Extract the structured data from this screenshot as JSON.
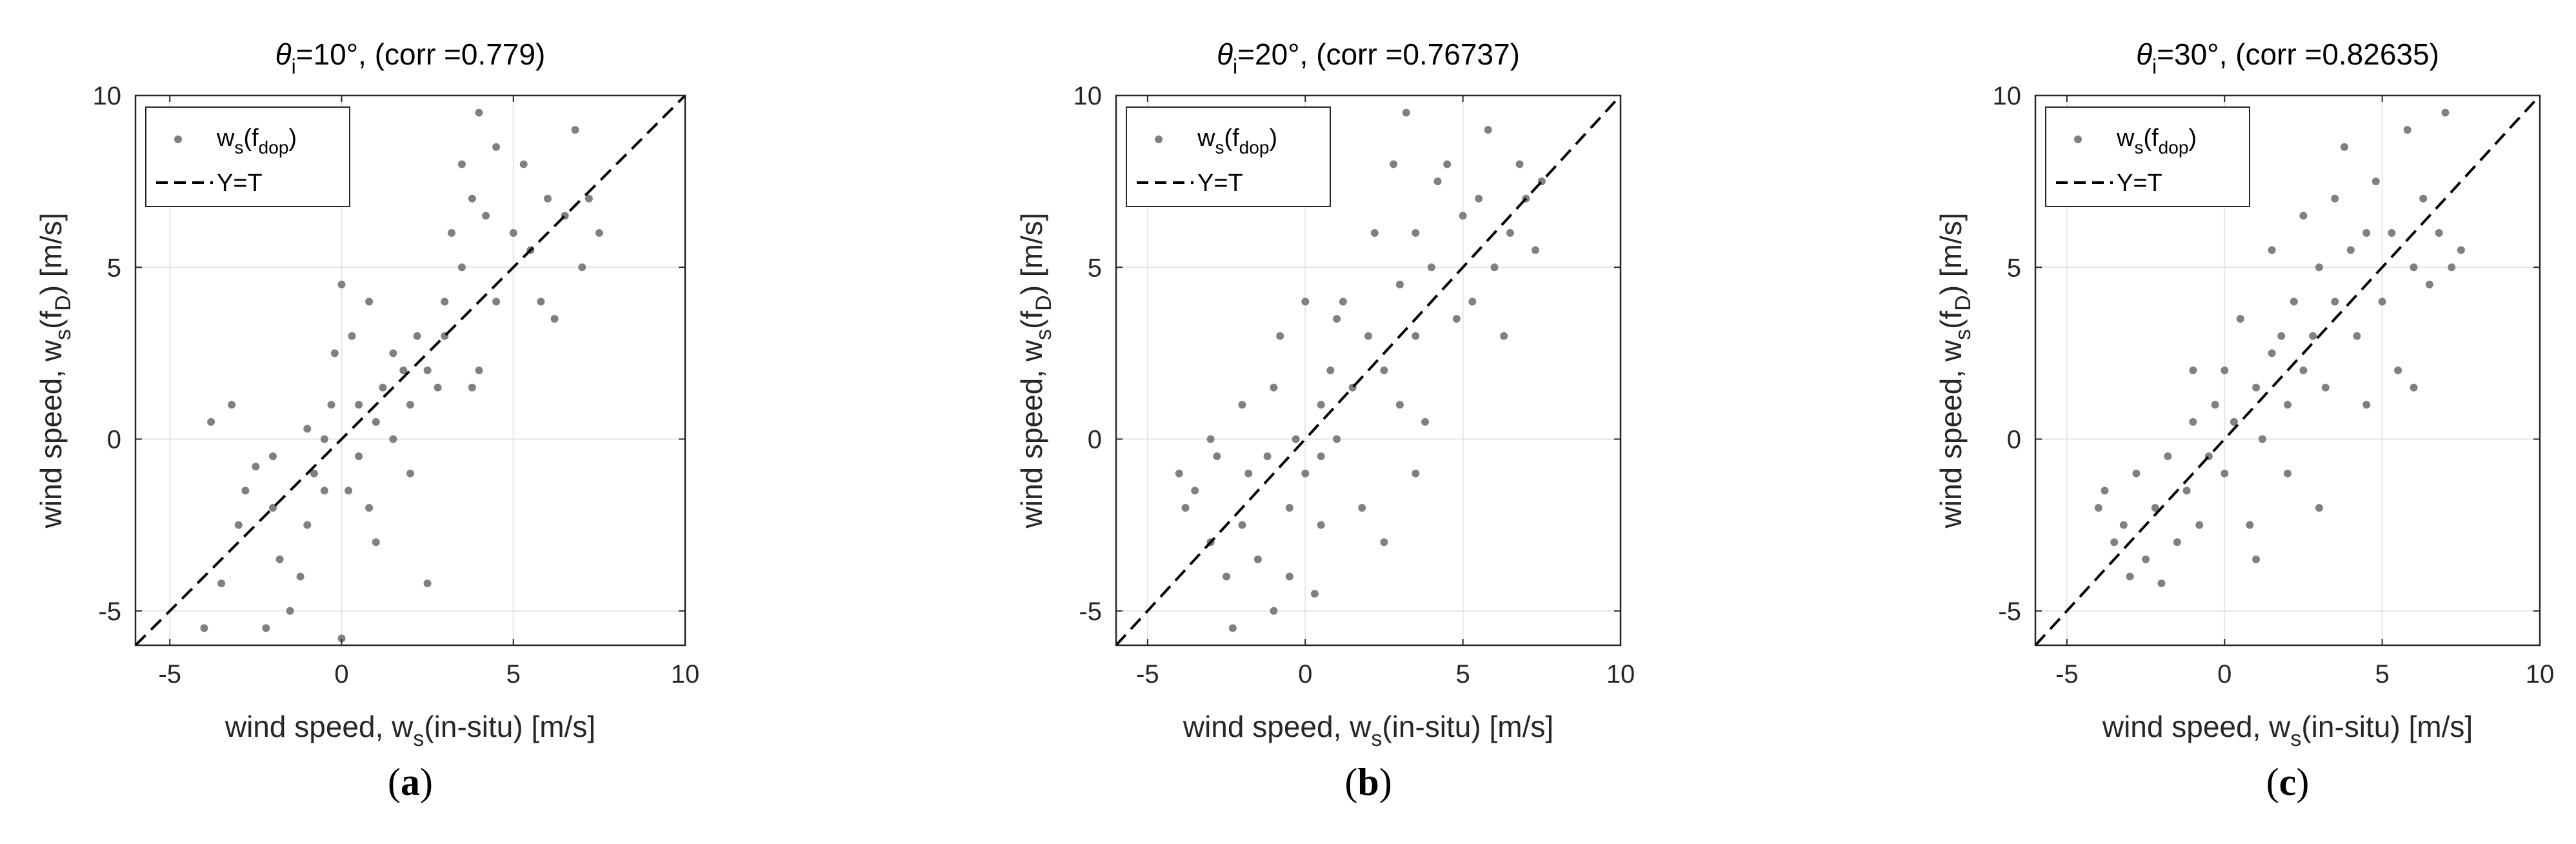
{
  "chart_data": [
    {
      "type": "scatter",
      "title": {
        "sym": "θ",
        "sub": "i",
        "rest": "=10°, (corr =0.779)"
      },
      "corr": 0.779,
      "xlabel": {
        "pre": "wind speed, w",
        "sub": "s",
        "post": "(in-situ) [m/s]"
      },
      "ylabel": {
        "pre": "wind speed, w",
        "sub": "s",
        "mid": "(f",
        "sub2": "D",
        "post": ") [m/s]"
      },
      "xlim": [
        -6,
        10
      ],
      "ylim": [
        -6,
        10
      ],
      "xticks": [
        "-5",
        "0",
        "5",
        "10"
      ],
      "yticks": [
        "-5",
        "0",
        "5",
        "10"
      ],
      "grid": true,
      "legend_position": "top-left",
      "series": [
        {
          "name": {
            "pre": "w",
            "sub": "s",
            "mid": "(f",
            "sub2": "dop",
            "post": ")"
          },
          "marker": "dot",
          "color": "#808080",
          "points": [
            [
              -4,
              -5.5
            ],
            [
              -3.5,
              -4.2
            ],
            [
              -3,
              -2.5
            ],
            [
              -2.8,
              -1.5
            ],
            [
              -2.5,
              -0.8
            ],
            [
              -2,
              -0.5
            ],
            [
              -2,
              -2
            ],
            [
              -1.8,
              -3.5
            ],
            [
              -1.5,
              -5
            ],
            [
              -1.2,
              -4
            ],
            [
              -1,
              -2.5
            ],
            [
              -0.8,
              -1
            ],
            [
              -0.5,
              0
            ],
            [
              -0.3,
              1
            ],
            [
              -0.2,
              2.5
            ],
            [
              0,
              4.5
            ],
            [
              0.3,
              3
            ],
            [
              0.5,
              1
            ],
            [
              0.5,
              -0.5
            ],
            [
              0.8,
              -2
            ],
            [
              1,
              0.5
            ],
            [
              1.2,
              1.5
            ],
            [
              1.5,
              0
            ],
            [
              1.8,
              2
            ],
            [
              2,
              1
            ],
            [
              2.2,
              3
            ],
            [
              2.5,
              2
            ],
            [
              2.8,
              1.5
            ],
            [
              3,
              4
            ],
            [
              3.2,
              6
            ],
            [
              3.5,
              5
            ],
            [
              3.5,
              8
            ],
            [
              3.8,
              7
            ],
            [
              4,
              9.5
            ],
            [
              4.2,
              6.5
            ],
            [
              4.5,
              4
            ],
            [
              4.5,
              8.5
            ],
            [
              5,
              6
            ],
            [
              5.3,
              8
            ],
            [
              5.5,
              5.5
            ],
            [
              5.8,
              4
            ],
            [
              6,
              7
            ],
            [
              6.2,
              3.5
            ],
            [
              6.5,
              6.5
            ],
            [
              6.8,
              9
            ],
            [
              7,
              5
            ],
            [
              7.2,
              7
            ],
            [
              7.5,
              6
            ],
            [
              -3.8,
              0.5
            ],
            [
              -3.2,
              1
            ],
            [
              -1,
              0.3
            ],
            [
              0.2,
              -1.5
            ],
            [
              1,
              -3
            ],
            [
              2.5,
              -4.2
            ],
            [
              0,
              -5.8
            ],
            [
              -2.2,
              -5.5
            ],
            [
              -0.5,
              -1.5
            ],
            [
              1.5,
              2.5
            ],
            [
              3,
              3
            ],
            [
              2,
              -1
            ],
            [
              4,
              2
            ],
            [
              0.8,
              4
            ],
            [
              3.8,
              1.5
            ]
          ]
        },
        {
          "name": "Y=T",
          "style": "dashed",
          "color": "#000000",
          "x": [
            -6,
            10
          ],
          "y": [
            -6,
            10
          ]
        }
      ],
      "panel_label": "(a)"
    },
    {
      "type": "scatter",
      "title": {
        "sym": "θ",
        "sub": "i",
        "rest": "=20°, (corr =0.76737)"
      },
      "corr": 0.76737,
      "xlabel": {
        "pre": "wind speed, w",
        "sub": "s",
        "post": "(in-situ) [m/s]"
      },
      "ylabel": {
        "pre": "wind speed, w",
        "sub": "s",
        "mid": "(f",
        "sub2": "D",
        "post": ") [m/s]"
      },
      "xlim": [
        -6,
        10
      ],
      "ylim": [
        -6,
        10
      ],
      "xticks": [
        "-5",
        "0",
        "5",
        "10"
      ],
      "yticks": [
        "-5",
        "0",
        "5",
        "10"
      ],
      "grid": true,
      "legend_position": "top-left",
      "series": [
        {
          "name": {
            "pre": "w",
            "sub": "s",
            "mid": "(f",
            "sub2": "dop",
            "post": ")"
          },
          "marker": "dot",
          "color": "#808080",
          "points": [
            [
              -4,
              -1
            ],
            [
              -3.8,
              -2
            ],
            [
              -3.5,
              -1.5
            ],
            [
              -3,
              -3
            ],
            [
              -2.8,
              -0.5
            ],
            [
              -2.5,
              -4
            ],
            [
              -2.3,
              -5.5
            ],
            [
              -2,
              -2.5
            ],
            [
              -1.8,
              -1
            ],
            [
              -1.5,
              -3.5
            ],
            [
              -1.2,
              -0.5
            ],
            [
              -1,
              1.5
            ],
            [
              -1,
              -5
            ],
            [
              -0.8,
              3
            ],
            [
              -0.5,
              -2
            ],
            [
              -0.3,
              0
            ],
            [
              0,
              -1
            ],
            [
              0,
              4
            ],
            [
              0.3,
              -4.5
            ],
            [
              0.5,
              1
            ],
            [
              0.5,
              -0.5
            ],
            [
              0.8,
              2
            ],
            [
              1,
              0
            ],
            [
              1.2,
              4
            ],
            [
              1.5,
              1.5
            ],
            [
              1.8,
              -2
            ],
            [
              2,
              3
            ],
            [
              2.2,
              6
            ],
            [
              2.5,
              2
            ],
            [
              2.5,
              -3
            ],
            [
              2.8,
              8
            ],
            [
              3,
              1
            ],
            [
              3,
              4.5
            ],
            [
              3.2,
              9.5
            ],
            [
              3.5,
              3
            ],
            [
              3.5,
              6
            ],
            [
              3.8,
              0.5
            ],
            [
              4,
              5
            ],
            [
              4.2,
              7.5
            ],
            [
              4.5,
              8
            ],
            [
              4.8,
              3.5
            ],
            [
              5,
              6.5
            ],
            [
              5.3,
              4
            ],
            [
              5.5,
              7
            ],
            [
              5.8,
              9
            ],
            [
              6,
              5
            ],
            [
              6.3,
              3
            ],
            [
              6.5,
              6
            ],
            [
              6.8,
              8
            ],
            [
              7,
              7
            ],
            [
              7.3,
              5.5
            ],
            [
              7.5,
              7.5
            ],
            [
              -3,
              0
            ],
            [
              -2,
              1
            ],
            [
              1,
              3.5
            ],
            [
              3.5,
              -1
            ],
            [
              0.5,
              -2.5
            ],
            [
              -0.5,
              -4
            ]
          ]
        },
        {
          "name": "Y=T",
          "style": "dashed",
          "color": "#000000",
          "x": [
            -6,
            10
          ],
          "y": [
            -6,
            10
          ]
        }
      ],
      "panel_label": "(b)"
    },
    {
      "type": "scatter",
      "title": {
        "sym": "θ",
        "sub": "i",
        "rest": "=30°, (corr =0.82635)"
      },
      "corr": 0.82635,
      "xlabel": {
        "pre": "wind speed, w",
        "sub": "s",
        "post": "(in-situ) [m/s]"
      },
      "ylabel": {
        "pre": "wind speed, w",
        "sub": "s",
        "mid": "(f",
        "sub2": "D",
        "post": ") [m/s]"
      },
      "xlim": [
        -6,
        10
      ],
      "ylim": [
        -6,
        10
      ],
      "xticks": [
        "-5",
        "0",
        "5",
        "10"
      ],
      "yticks": [
        "-5",
        "0",
        "5",
        "10"
      ],
      "grid": true,
      "legend_position": "top-left",
      "series": [
        {
          "name": {
            "pre": "w",
            "sub": "s",
            "mid": "(f",
            "sub2": "dop",
            "post": ")"
          },
          "marker": "dot",
          "color": "#808080",
          "points": [
            [
              -4,
              -2
            ],
            [
              -3.8,
              -1.5
            ],
            [
              -3.5,
              -3
            ],
            [
              -3.2,
              -2.5
            ],
            [
              -3,
              -4
            ],
            [
              -2.8,
              -1
            ],
            [
              -2.5,
              -3.5
            ],
            [
              -2.2,
              -2
            ],
            [
              -2,
              -4.2
            ],
            [
              -1.8,
              -0.5
            ],
            [
              -1.5,
              -3
            ],
            [
              -1.2,
              -1.5
            ],
            [
              -1,
              0.5
            ],
            [
              -0.8,
              -2.5
            ],
            [
              -0.5,
              -0.5
            ],
            [
              -0.3,
              1
            ],
            [
              0,
              -1
            ],
            [
              0,
              2
            ],
            [
              0.3,
              0.5
            ],
            [
              0.5,
              3.5
            ],
            [
              0.8,
              -2.5
            ],
            [
              1,
              1.5
            ],
            [
              1.2,
              0
            ],
            [
              1.5,
              2.5
            ],
            [
              1.5,
              5.5
            ],
            [
              1.8,
              3
            ],
            [
              2,
              1
            ],
            [
              2.2,
              4
            ],
            [
              2.5,
              2
            ],
            [
              2.5,
              6.5
            ],
            [
              2.8,
              3
            ],
            [
              3,
              5
            ],
            [
              3.2,
              1.5
            ],
            [
              3.5,
              7
            ],
            [
              3.5,
              4
            ],
            [
              3.8,
              8.5
            ],
            [
              4,
              5.5
            ],
            [
              4.2,
              3
            ],
            [
              4.5,
              6
            ],
            [
              4.8,
              7.5
            ],
            [
              5,
              4
            ],
            [
              5.3,
              6
            ],
            [
              5.5,
              2
            ],
            [
              5.8,
              9
            ],
            [
              6,
              5
            ],
            [
              6.3,
              7
            ],
            [
              6.5,
              4.5
            ],
            [
              6.8,
              6
            ],
            [
              7,
              9.5
            ],
            [
              7.2,
              5
            ],
            [
              7.5,
              5.5
            ],
            [
              2,
              -1
            ],
            [
              3,
              -2
            ],
            [
              1,
              -3.5
            ],
            [
              -1,
              2
            ],
            [
              4.5,
              1
            ],
            [
              6,
              1.5
            ]
          ]
        },
        {
          "name": "Y=T",
          "style": "dashed",
          "color": "#000000",
          "x": [
            -6,
            10
          ],
          "y": [
            -6,
            10
          ]
        }
      ],
      "panel_label": "(c)"
    }
  ]
}
